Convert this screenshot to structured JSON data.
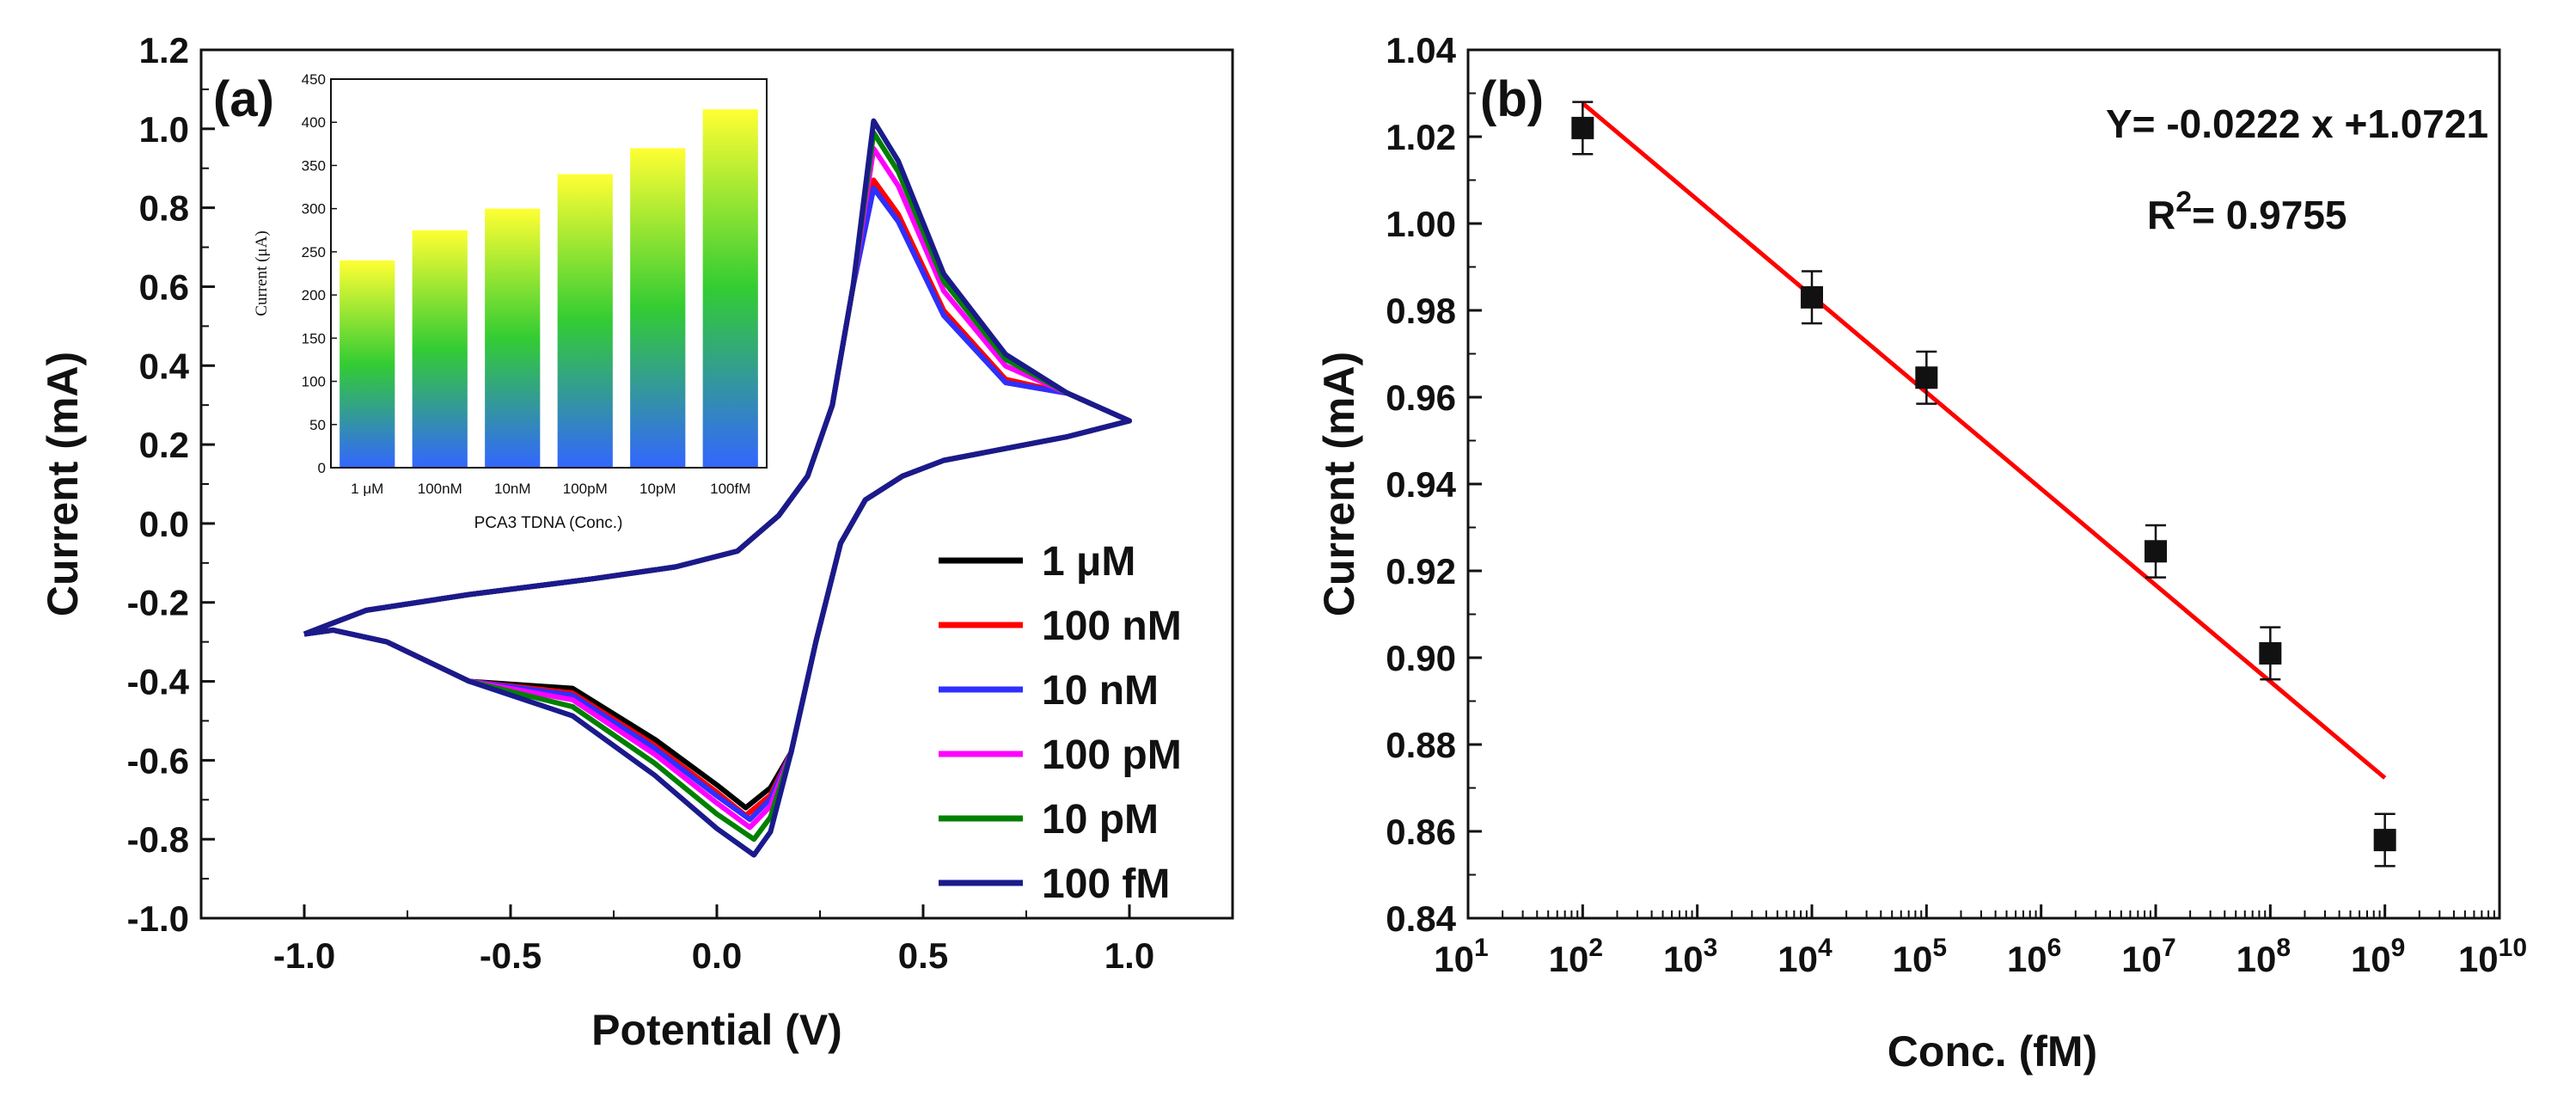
{
  "chart_data": [
    {
      "panel": "(a)",
      "type": "line",
      "xlabel": "Potential (V)",
      "ylabel": "Current (mA)",
      "xlim": [
        -1.25,
        1.25
      ],
      "ylim": [
        -1.0,
        1.2
      ],
      "xticks": [
        "-1.0",
        "-0.5",
        "0.0",
        "0.5",
        "1.0"
      ],
      "yticks": [
        "-1.0",
        "-0.8",
        "-0.6",
        "-0.4",
        "-0.2",
        "0.0",
        "0.2",
        "0.4",
        "0.6",
        "0.8",
        "1.0",
        "1.2"
      ],
      "legend_position": "bottom-right",
      "series": [
        {
          "name": "1 μM",
          "color": "#000000",
          "anodic_peak": {
            "x": 0.38,
            "y": 0.85
          },
          "cathodic_peak": {
            "x": 0.07,
            "y": -0.72
          }
        },
        {
          "name": "100 nM",
          "color": "#ff0000",
          "anodic_peak": {
            "x": 0.38,
            "y": 0.87
          },
          "cathodic_peak": {
            "x": 0.07,
            "y": -0.74
          }
        },
        {
          "name": "10 nM",
          "color": "#2f2fff",
          "anodic_peak": {
            "x": 0.38,
            "y": 0.85
          },
          "cathodic_peak": {
            "x": 0.08,
            "y": -0.75
          }
        },
        {
          "name": "100 pM",
          "color": "#ff00ff",
          "anodic_peak": {
            "x": 0.38,
            "y": 0.95
          },
          "cathodic_peak": {
            "x": 0.08,
            "y": -0.77
          }
        },
        {
          "name": "10 pM",
          "color": "#008000",
          "anodic_peak": {
            "x": 0.38,
            "y": 0.99
          },
          "cathodic_peak": {
            "x": 0.09,
            "y": -0.8
          }
        },
        {
          "name": "100 fM",
          "color": "#1a1a8c",
          "anodic_peak": {
            "x": 0.38,
            "y": 1.02
          },
          "cathodic_peak": {
            "x": 0.09,
            "y": -0.84
          }
        }
      ],
      "inset": {
        "type": "bar",
        "xlabel": "PCA3 TDNA (Conc.)",
        "ylabel": "Current (μA)",
        "ylim": [
          0,
          450
        ],
        "yticks": [
          "0",
          "50",
          "100",
          "150",
          "200",
          "250",
          "300",
          "350",
          "400",
          "450"
        ],
        "categories": [
          "1 μM",
          "100nM",
          "10nM",
          "100pM",
          "10pM",
          "100fM"
        ],
        "values": [
          240,
          275,
          300,
          340,
          370,
          415
        ],
        "gradient": [
          "#ffff33",
          "#33cc33",
          "#3366ff"
        ]
      }
    },
    {
      "panel": "(b)",
      "type": "scatter",
      "xscale": "log",
      "xlabel": "Conc. (fM)",
      "ylabel": "Current (mA)",
      "xlim": [
        10,
        10000000000
      ],
      "ylim": [
        0.84,
        1.04
      ],
      "yticks": [
        "0.84",
        "0.86",
        "0.88",
        "0.90",
        "0.92",
        "0.94",
        "0.96",
        "0.98",
        "1.00",
        "1.02",
        "1.04"
      ],
      "xtick_exponents": [
        "1",
        "2",
        "3",
        "4",
        "5",
        "6",
        "7",
        "8",
        "9",
        "10"
      ],
      "xtick_base": "10",
      "points": [
        {
          "x": 100,
          "y": 1.022,
          "err": 0.006
        },
        {
          "x": 10000,
          "y": 0.983,
          "err": 0.006
        },
        {
          "x": 100000,
          "y": 0.9645,
          "err": 0.006
        },
        {
          "x": 10000000,
          "y": 0.9245,
          "err": 0.006
        },
        {
          "x": 100000000,
          "y": 0.901,
          "err": 0.006
        },
        {
          "x": 1000000000,
          "y": 0.858,
          "err": 0.006
        }
      ],
      "fit": {
        "slope": -0.0222,
        "intercept": 1.0721,
        "color": "#ff0000",
        "x_from": 100,
        "x_to": 1000000000,
        "equation": "Y= -0.0222 x +1.0721",
        "r2_prefix": "R",
        "r2_sup": "2",
        "r2_value": "= 0.9755"
      }
    }
  ]
}
